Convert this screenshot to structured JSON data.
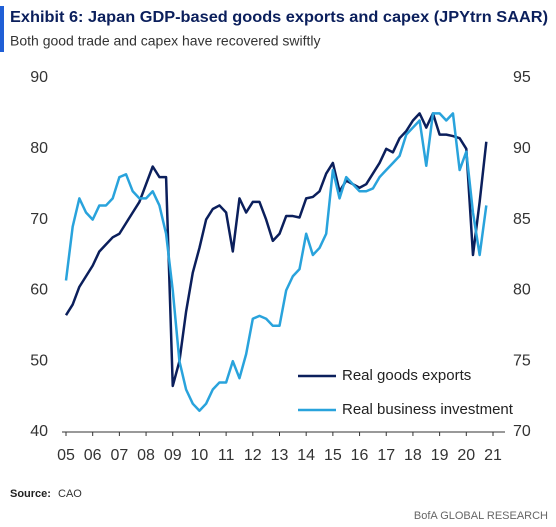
{
  "chart_data": {
    "type": "line",
    "title": "Exhibit 6: Japan GDP-based goods exports and capex (JPYtrn SAAR)",
    "subtitle": "Both good trade and capex have recovered swiftly",
    "source_label": "Source:",
    "source": "CAO",
    "brand": "BofA GLOBAL RESEARCH",
    "x": [
      2005,
      2005.25,
      2005.5,
      2005.75,
      2006,
      2006.25,
      2006.5,
      2006.75,
      2007,
      2007.25,
      2007.5,
      2007.75,
      2008,
      2008.25,
      2008.5,
      2008.75,
      2009,
      2009.25,
      2009.5,
      2009.75,
      2010,
      2010.25,
      2010.5,
      2010.75,
      2011,
      2011.25,
      2011.5,
      2011.75,
      2012,
      2012.25,
      2012.5,
      2012.75,
      2013,
      2013.25,
      2013.5,
      2013.75,
      2014,
      2014.25,
      2014.5,
      2014.75,
      2015,
      2015.25,
      2015.5,
      2015.75,
      2016,
      2016.25,
      2016.5,
      2016.75,
      2017,
      2017.25,
      2017.5,
      2017.75,
      2018,
      2018.25,
      2018.5,
      2018.75,
      2019,
      2019.25,
      2019.5,
      2019.75,
      2020,
      2020.25,
      2020.5,
      2020.75
    ],
    "series": [
      {
        "name": "Real goods exports",
        "color": "#0b1f5c",
        "axis": "y",
        "values": [
          56.5,
          58,
          60.5,
          62,
          63.5,
          65.5,
          66.5,
          67.5,
          68,
          69.5,
          71,
          72.5,
          75,
          77.5,
          76,
          76,
          46.5,
          50,
          57,
          62.5,
          66,
          70,
          71.5,
          72,
          71,
          65.5,
          73,
          71,
          72.5,
          72.5,
          70,
          67,
          68,
          70.5,
          70.5,
          70.3,
          73,
          73.2,
          74,
          76.5,
          78,
          74,
          75.5,
          75,
          74.5,
          75,
          76.5,
          78,
          80,
          79.5,
          81.5,
          82.5,
          84,
          85,
          83,
          85,
          82,
          82,
          81.8,
          81.5,
          80,
          65,
          72.5,
          81
        ]
      },
      {
        "name": "Real business investment",
        "color": "#29a3dc",
        "axis": "y2",
        "values": [
          80.7,
          84.5,
          86.5,
          85.5,
          85,
          86,
          86,
          86.5,
          88,
          88.2,
          87,
          86.5,
          86.5,
          87,
          86,
          84,
          80,
          75,
          73,
          72,
          71.5,
          72,
          73,
          73.5,
          73.5,
          75,
          73.8,
          75.5,
          78,
          78.2,
          78,
          77.5,
          77.5,
          80,
          81,
          81.5,
          84,
          82.5,
          83,
          84,
          88.5,
          86.5,
          88,
          87.5,
          87,
          87,
          87.2,
          88,
          88.5,
          89,
          89.5,
          91,
          91.5,
          92,
          88.8,
          92.5,
          92.5,
          92,
          92.5,
          88.5,
          89.8,
          85.5,
          82.5,
          86
        ]
      }
    ],
    "xlim": [
      2004.85,
      2021.45
    ],
    "xticks": [
      {
        "value": 2005,
        "label": "05"
      },
      {
        "value": 2006,
        "label": "06"
      },
      {
        "value": 2007,
        "label": "07"
      },
      {
        "value": 2008,
        "label": "08"
      },
      {
        "value": 2009,
        "label": "09"
      },
      {
        "value": 2010,
        "label": "10"
      },
      {
        "value": 2011,
        "label": "11"
      },
      {
        "value": 2012,
        "label": "12"
      },
      {
        "value": 2013,
        "label": "13"
      },
      {
        "value": 2014,
        "label": "14"
      },
      {
        "value": 2015,
        "label": "15"
      },
      {
        "value": 2016,
        "label": "16"
      },
      {
        "value": 2017,
        "label": "17"
      },
      {
        "value": 2018,
        "label": "18"
      },
      {
        "value": 2019,
        "label": "19"
      },
      {
        "value": 2020,
        "label": "20"
      },
      {
        "value": 2021,
        "label": "21"
      }
    ],
    "ylim": [
      40,
      90
    ],
    "yticks": [
      40,
      50,
      60,
      70,
      80,
      90
    ],
    "y2lim": [
      70,
      95
    ],
    "y2ticks": [
      70,
      75,
      80,
      85,
      90,
      95
    ],
    "legend": "lower right"
  }
}
